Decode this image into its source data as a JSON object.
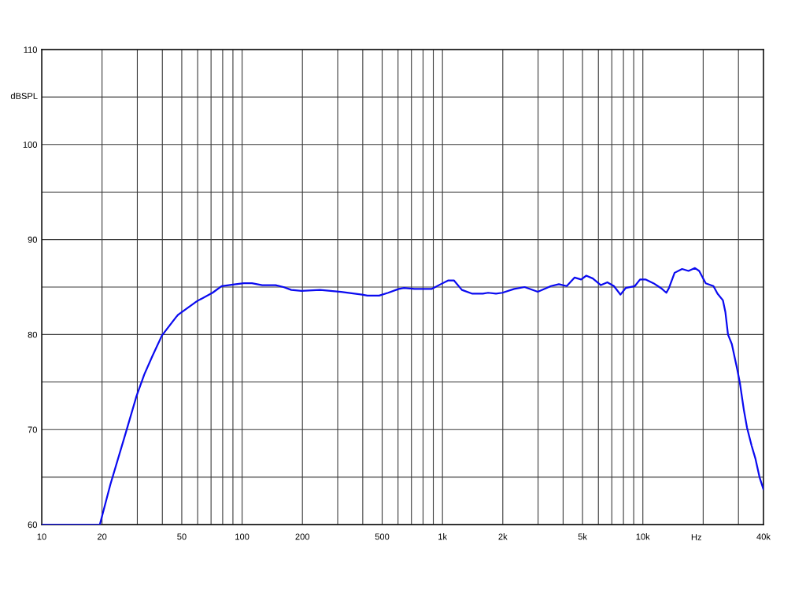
{
  "chart_data": {
    "type": "line",
    "xlabel": "Hz",
    "ylabel": "dBSPL",
    "log": "x",
    "grid": true,
    "xlim": [
      10,
      40000
    ],
    "ylim": [
      60,
      110
    ],
    "xticks": [
      10,
      20,
      {
        "value": 30,
        "label": null
      },
      {
        "value": 40,
        "label": null
      },
      50,
      {
        "value": 60,
        "label": null
      },
      {
        "value": 70,
        "label": null
      },
      {
        "value": 80,
        "label": null
      },
      {
        "value": 90,
        "label": null
      },
      100,
      200,
      {
        "value": 300,
        "label": null
      },
      {
        "value": 400,
        "label": null
      },
      500,
      {
        "value": 600,
        "label": null
      },
      {
        "value": 700,
        "label": null
      },
      {
        "value": 800,
        "label": null
      },
      {
        "value": 900,
        "label": null
      },
      {
        "value": 1000,
        "label": "1k"
      },
      {
        "value": 2000,
        "label": "2k"
      },
      {
        "value": 3000,
        "label": null
      },
      {
        "value": 4000,
        "label": null
      },
      {
        "value": 5000,
        "label": "5k"
      },
      {
        "value": 6000,
        "label": null
      },
      {
        "value": 7000,
        "label": null
      },
      {
        "value": 8000,
        "label": null
      },
      {
        "value": 9000,
        "label": null
      },
      {
        "value": 10000,
        "label": "10k"
      },
      {
        "value": 20000,
        "label": null
      },
      {
        "value": 30000,
        "label": null
      },
      {
        "value": 40000,
        "label": "40k"
      }
    ],
    "yticks": [
      60,
      {
        "value": 65,
        "label": null
      },
      70,
      {
        "value": 75,
        "label": null
      },
      80,
      {
        "value": 85,
        "label": null
      },
      90,
      {
        "value": 95,
        "label": null
      },
      100,
      {
        "value": 105,
        "label": null
      },
      110
    ],
    "x": [
      10,
      19.5,
      22,
      26.3,
      29.7,
      32.5,
      35.6,
      39.8,
      46.7,
      48,
      59.4,
      71.2,
      79,
      93,
      102,
      112,
      126,
      147,
      161,
      176,
      198,
      245,
      312,
      397,
      422,
      483,
      536,
      605,
      643,
      725,
      882,
      980,
      1070,
      1140,
      1250,
      1410,
      1590,
      1690,
      1850,
      1990,
      2280,
      2570,
      2990,
      3480,
      3810,
      4170,
      4560,
      4920,
      5220,
      5630,
      6170,
      6650,
      7170,
      7730,
      8210,
      9120,
      9680,
      10300,
      11300,
      12300,
      13100,
      13500,
      14400,
      15700,
      16900,
      18200,
      19100,
      20600,
      22500,
      23600,
      25100,
      25800,
      26600,
      27800,
      29600,
      30500,
      31900,
      33100,
      34900,
      36500,
      38200,
      40000
    ],
    "series": [
      {
        "color": "#0a0af0",
        "values": [
          60,
          60,
          64.2,
          69.7,
          73.5,
          75.8,
          77.7,
          79.9,
          81.8,
          82.1,
          83.5,
          84.4,
          85.1,
          85.3,
          85.4,
          85.4,
          85.2,
          85.2,
          85.0,
          84.7,
          84.6,
          84.7,
          84.5,
          84.2,
          84.1,
          84.1,
          84.4,
          84.8,
          84.9,
          84.8,
          84.8,
          85.3,
          85.7,
          85.7,
          84.7,
          84.3,
          84.3,
          84.4,
          84.3,
          84.4,
          84.8,
          85.0,
          84.5,
          85.1,
          85.3,
          85.1,
          86.0,
          85.8,
          86.2,
          85.9,
          85.2,
          85.5,
          85.1,
          84.2,
          84.9,
          85.1,
          85.8,
          85.8,
          85.4,
          84.9,
          84.4,
          84.9,
          86.5,
          86.9,
          86.7,
          87.0,
          86.7,
          85.4,
          85.1,
          84.3,
          83.6,
          82.4,
          80.0,
          79.0,
          76.3,
          74.9,
          72.1,
          70.2,
          68.3,
          66.9,
          65.0,
          63.7
        ]
      }
    ]
  }
}
